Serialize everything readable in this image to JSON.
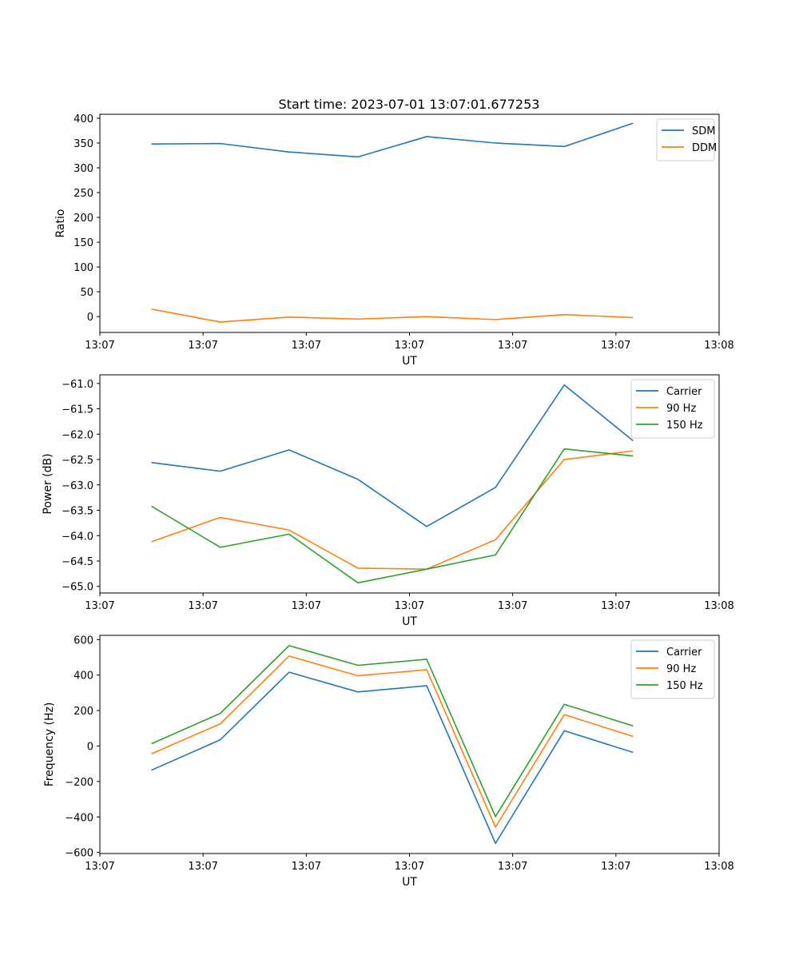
{
  "figure_title": "Start time: 2023-07-01 13:07:01.677253",
  "chart_data": [
    {
      "type": "line",
      "title": "Start time: 2023-07-01 13:07:01.677253",
      "xlabel": "UT",
      "ylabel": "Ratio",
      "xlim": [
        0,
        9
      ],
      "ylim": [
        -32,
        408
      ],
      "x": [
        0.75,
        1.75,
        2.75,
        3.75,
        4.75,
        5.75,
        6.75,
        7.75
      ],
      "xticks": [
        {
          "value": 0,
          "label": "13:07"
        },
        {
          "value": 1.5,
          "label": "13:07"
        },
        {
          "value": 3,
          "label": "13:07"
        },
        {
          "value": 4.5,
          "label": "13:07"
        },
        {
          "value": 6,
          "label": "13:07"
        },
        {
          "value": 7.5,
          "label": "13:07"
        },
        {
          "value": 9,
          "label": "13:08"
        }
      ],
      "yticks": [
        {
          "value": 0,
          "label": "0"
        },
        {
          "value": 50,
          "label": "50"
        },
        {
          "value": 100,
          "label": "100"
        },
        {
          "value": 150,
          "label": "150"
        },
        {
          "value": 200,
          "label": "200"
        },
        {
          "value": 250,
          "label": "250"
        },
        {
          "value": 300,
          "label": "300"
        },
        {
          "value": 350,
          "label": "350"
        },
        {
          "value": 400,
          "label": "400"
        }
      ],
      "legend": "top-right",
      "series": [
        {
          "name": "SDM",
          "color": "#1f77b4",
          "values": [
            348,
            349,
            332,
            322,
            363,
            350,
            343,
            390
          ]
        },
        {
          "name": "DDM",
          "color": "#ff7f0e",
          "values": [
            15,
            -11,
            -1,
            -5,
            0,
            -6,
            4,
            -2
          ]
        }
      ]
    },
    {
      "type": "line",
      "title": "",
      "xlabel": "UT",
      "ylabel": "Power (dB)",
      "xlim": [
        0,
        9
      ],
      "ylim": [
        -65.13,
        -60.83
      ],
      "x": [
        0.75,
        1.75,
        2.75,
        3.75,
        4.75,
        5.75,
        6.75,
        7.75
      ],
      "xticks": [
        {
          "value": 0,
          "label": "13:07"
        },
        {
          "value": 1.5,
          "label": "13:07"
        },
        {
          "value": 3,
          "label": "13:07"
        },
        {
          "value": 4.5,
          "label": "13:07"
        },
        {
          "value": 6,
          "label": "13:07"
        },
        {
          "value": 7.5,
          "label": "13:07"
        },
        {
          "value": 9,
          "label": "13:08"
        }
      ],
      "yticks": [
        {
          "value": -65.0,
          "label": "−65.0"
        },
        {
          "value": -64.5,
          "label": "−64.5"
        },
        {
          "value": -64.0,
          "label": "−64.0"
        },
        {
          "value": -63.5,
          "label": "−63.5"
        },
        {
          "value": -63.0,
          "label": "−63.0"
        },
        {
          "value": -62.5,
          "label": "−62.5"
        },
        {
          "value": -62.0,
          "label": "−62.0"
        },
        {
          "value": -61.5,
          "label": "−61.5"
        },
        {
          "value": -61.0,
          "label": "−61.0"
        }
      ],
      "legend": "top-right",
      "series": [
        {
          "name": "Carrier",
          "color": "#1f77b4",
          "values": [
            -62.56,
            -62.73,
            -62.31,
            -62.89,
            -63.82,
            -63.05,
            -61.03,
            -62.13
          ]
        },
        {
          "name": "90 Hz",
          "color": "#ff7f0e",
          "values": [
            -64.12,
            -63.64,
            -63.89,
            -64.64,
            -64.66,
            -64.08,
            -62.5,
            -62.33
          ]
        },
        {
          "name": "150 Hz",
          "color": "#2ca02c",
          "values": [
            -63.42,
            -64.23,
            -63.97,
            -64.93,
            -64.66,
            -64.38,
            -62.29,
            -62.43
          ]
        }
      ]
    },
    {
      "type": "line",
      "title": "",
      "xlabel": "UT",
      "ylabel": "Frequency (Hz)",
      "xlim": [
        0,
        9
      ],
      "ylim": [
        -606,
        624
      ],
      "x": [
        0.75,
        1.75,
        2.75,
        3.75,
        4.75,
        5.75,
        6.75,
        7.75
      ],
      "xticks": [
        {
          "value": 0,
          "label": "13:07"
        },
        {
          "value": 1.5,
          "label": "13:07"
        },
        {
          "value": 3,
          "label": "13:07"
        },
        {
          "value": 4.5,
          "label": "13:07"
        },
        {
          "value": 6,
          "label": "13:07"
        },
        {
          "value": 7.5,
          "label": "13:07"
        },
        {
          "value": 9,
          "label": "13:08"
        }
      ],
      "yticks": [
        {
          "value": -600,
          "label": "−600"
        },
        {
          "value": -400,
          "label": "−400"
        },
        {
          "value": -200,
          "label": "−200"
        },
        {
          "value": 0,
          "label": "0"
        },
        {
          "value": 200,
          "label": "200"
        },
        {
          "value": 400,
          "label": "400"
        },
        {
          "value": 600,
          "label": "600"
        }
      ],
      "legend": "top-right",
      "series": [
        {
          "name": "Carrier",
          "color": "#1f77b4",
          "values": [
            -136,
            35,
            416,
            305,
            340,
            -549,
            86,
            -36
          ]
        },
        {
          "name": "90 Hz",
          "color": "#ff7f0e",
          "values": [
            -44,
            125,
            507,
            396,
            430,
            -457,
            177,
            54
          ]
        },
        {
          "name": "150 Hz",
          "color": "#2ca02c",
          "values": [
            13,
            184,
            566,
            455,
            489,
            -398,
            235,
            113
          ]
        }
      ]
    }
  ]
}
